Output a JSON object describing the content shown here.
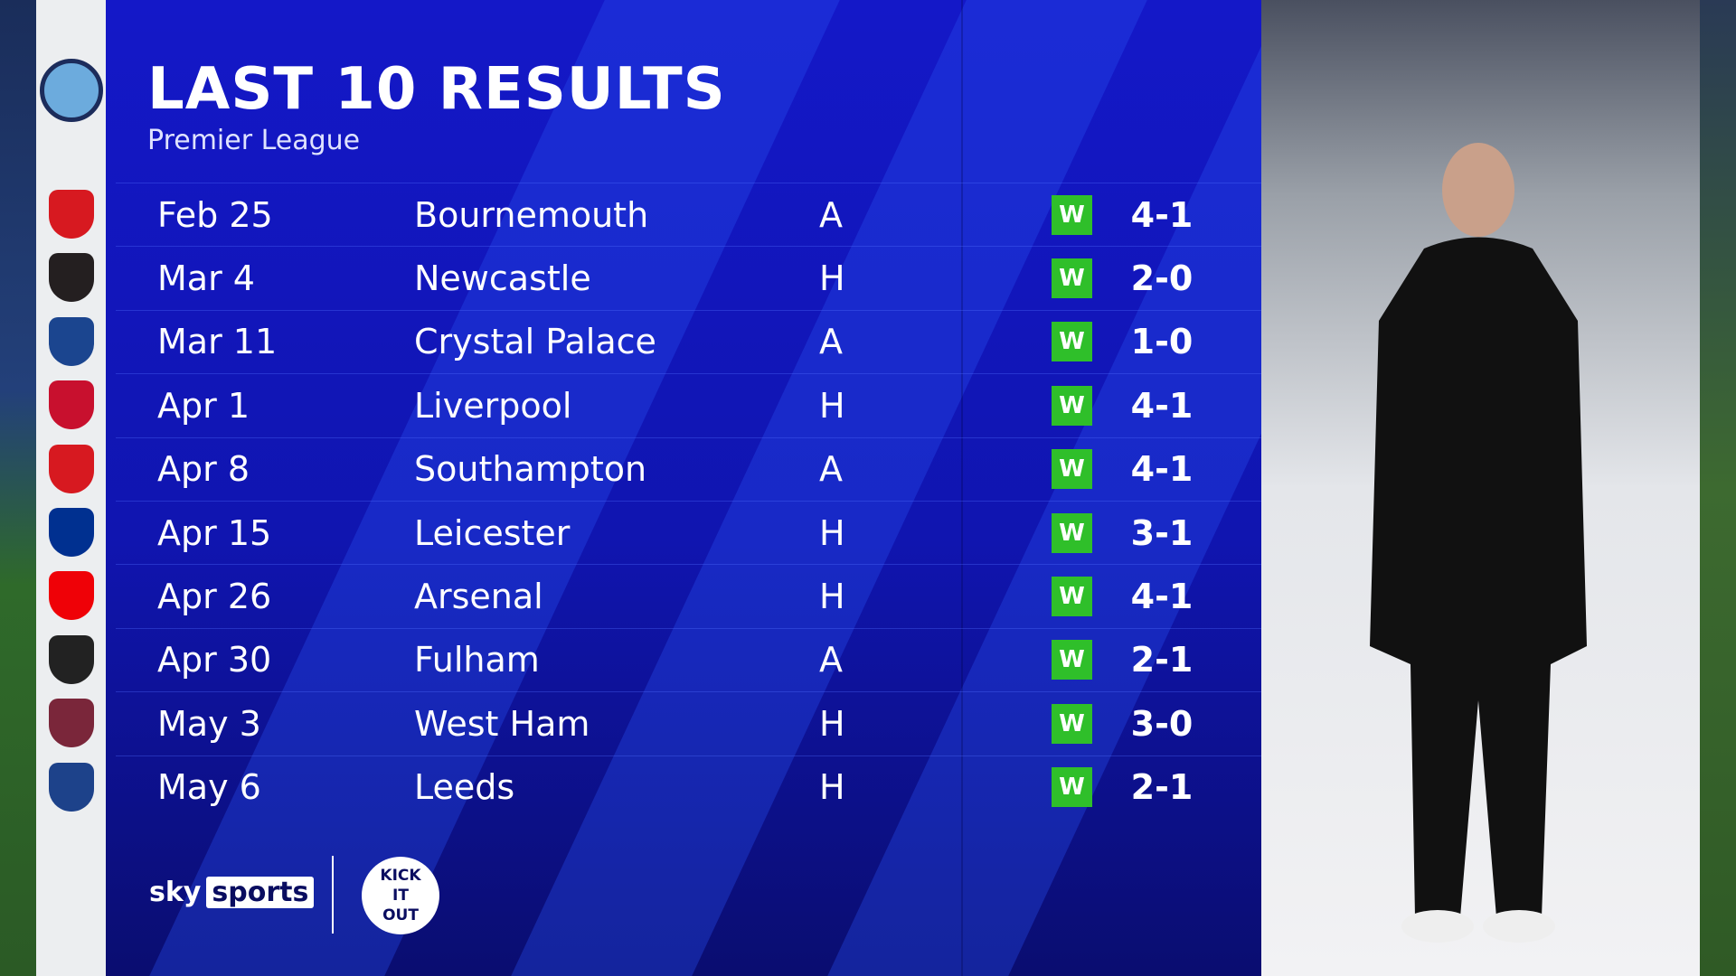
{
  "header": {
    "title": "LAST 10 RESULTS",
    "subtitle": "Premier League"
  },
  "team": {
    "icon": "manchester-city-crest-icon"
  },
  "colors": {
    "panel": "#1418c8",
    "win": "#2fbf2a"
  },
  "results": [
    {
      "date": "Feb 25",
      "opponent": "Bournemouth",
      "venue": "A",
      "result": "W",
      "score": "4-1",
      "crest_color": "#d71920"
    },
    {
      "date": "Mar 4",
      "opponent": "Newcastle",
      "venue": "H",
      "result": "W",
      "score": "2-0",
      "crest_color": "#241f20"
    },
    {
      "date": "Mar 11",
      "opponent": "Crystal Palace",
      "venue": "A",
      "result": "W",
      "score": "1-0",
      "crest_color": "#1b458f"
    },
    {
      "date": "Apr 1",
      "opponent": "Liverpool",
      "venue": "H",
      "result": "W",
      "score": "4-1",
      "crest_color": "#c8102e"
    },
    {
      "date": "Apr 8",
      "opponent": "Southampton",
      "venue": "A",
      "result": "W",
      "score": "4-1",
      "crest_color": "#d71920"
    },
    {
      "date": "Apr 15",
      "opponent": "Leicester",
      "venue": "H",
      "result": "W",
      "score": "3-1",
      "crest_color": "#003090"
    },
    {
      "date": "Apr 26",
      "opponent": "Arsenal",
      "venue": "H",
      "result": "W",
      "score": "4-1",
      "crest_color": "#ef0107"
    },
    {
      "date": "Apr 30",
      "opponent": "Fulham",
      "venue": "A",
      "result": "W",
      "score": "2-1",
      "crest_color": "#222222"
    },
    {
      "date": "May 3",
      "opponent": "West Ham",
      "venue": "H",
      "result": "W",
      "score": "3-0",
      "crest_color": "#7a263a"
    },
    {
      "date": "May 6",
      "opponent": "Leeds",
      "venue": "H",
      "result": "W",
      "score": "2-1",
      "crest_color": "#1d428a"
    }
  ],
  "footer": {
    "sky": "sky",
    "sports": "sports",
    "kick_it_out": "KICK IT OUT"
  }
}
